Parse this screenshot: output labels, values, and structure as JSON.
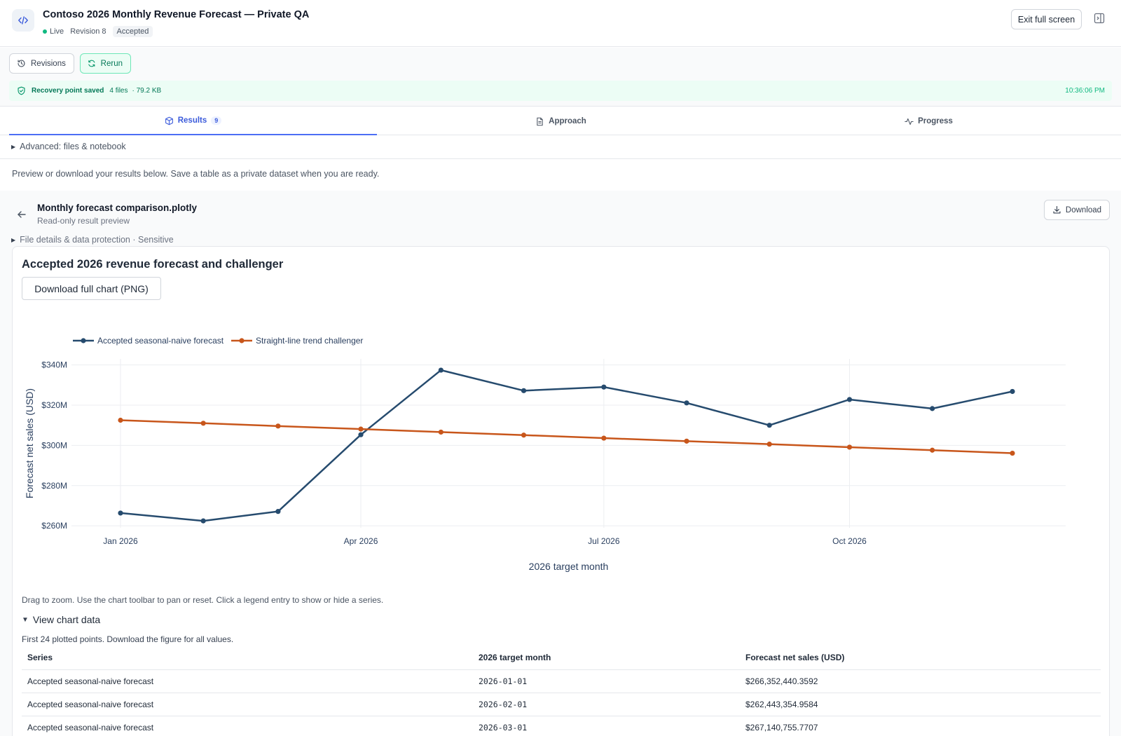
{
  "header": {
    "title": "Contoso 2026 Monthly Revenue Forecast — Private QA",
    "status": "Live",
    "revision": "Revision 8",
    "badge": "Accepted",
    "exit_label": "Exit full screen"
  },
  "toolbar": {
    "revisions_label": "Revisions",
    "rerun_label": "Rerun",
    "recovery_label": "Recovery point saved",
    "recovery_files": "4 files",
    "recovery_size": "· 79.2 KB",
    "recovery_time": "10:36:06 PM"
  },
  "tabs": [
    {
      "label": "Results",
      "count": "9"
    },
    {
      "label": "Approach"
    },
    {
      "label": "Progress"
    }
  ],
  "advanced_label": "Advanced: files & notebook",
  "intro_text": "Preview or download your results below. Save a table as a private dataset when you are ready.",
  "file": {
    "name": "Monthly forecast comparison.plotly",
    "subtitle": "Read-only result preview",
    "download_label": "Download",
    "details_label": "File details & data protection · Sensitive"
  },
  "card": {
    "title": "Accepted 2026 revenue forecast and challenger",
    "png_button": "Download full chart (PNG)",
    "hint": "Drag to zoom. Use the chart toolbar to pan or reset. Click a legend entry to show or hide a series.",
    "view_data_label": "View chart data",
    "first_note": "First 24 plotted points. Download the figure for all values."
  },
  "colors": {
    "accepted": "#264b6e",
    "challenger": "#c8561b",
    "accent": "#4c6ef5",
    "success": "#10b981"
  },
  "chart_data": {
    "type": "line",
    "xlabel": "2026 target month",
    "ylabel": "Forecast net sales (USD)",
    "x": [
      "2026-01-01",
      "2026-02-01",
      "2026-03-01",
      "2026-04-01",
      "2026-05-01",
      "2026-06-01",
      "2026-07-01",
      "2026-08-01",
      "2026-09-01",
      "2026-10-01",
      "2026-11-01",
      "2026-12-01"
    ],
    "x_ticks": [
      "Jan 2026",
      "Apr 2026",
      "Jul 2026",
      "Oct 2026"
    ],
    "x_tick_positions": [
      "2026-01-01",
      "2026-04-01",
      "2026-07-01",
      "2026-10-01"
    ],
    "y_ticks": [
      "$260M",
      "$280M",
      "$300M",
      "$320M",
      "$340M"
    ],
    "y_tick_values": [
      260,
      280,
      300,
      320,
      340
    ],
    "y_units": "millions USD",
    "ylim": [
      259,
      343
    ],
    "legend_position": "top-left",
    "grid": true,
    "series": [
      {
        "name": "Accepted seasonal-naive forecast",
        "values": [
          266.35,
          262.44,
          267.14,
          305.3,
          337.4,
          327.2,
          329.0,
          321.1,
          310.0,
          322.8,
          318.3,
          326.8
        ]
      },
      {
        "name": "Straight-line trend challenger",
        "values": [
          312.5,
          311.0,
          309.6,
          308.1,
          306.6,
          305.1,
          303.6,
          302.1,
          300.6,
          299.1,
          297.6,
          296.1
        ]
      }
    ]
  },
  "table": {
    "headers": [
      "Series",
      "2026 target month",
      "Forecast net sales (USD)"
    ],
    "rows": [
      [
        "Accepted seasonal-naive forecast",
        "2026-01-01",
        "$266,352,440.3592"
      ],
      [
        "Accepted seasonal-naive forecast",
        "2026-02-01",
        "$262,443,354.9584"
      ],
      [
        "Accepted seasonal-naive forecast",
        "2026-03-01",
        "$267,140,755.7707"
      ]
    ]
  }
}
